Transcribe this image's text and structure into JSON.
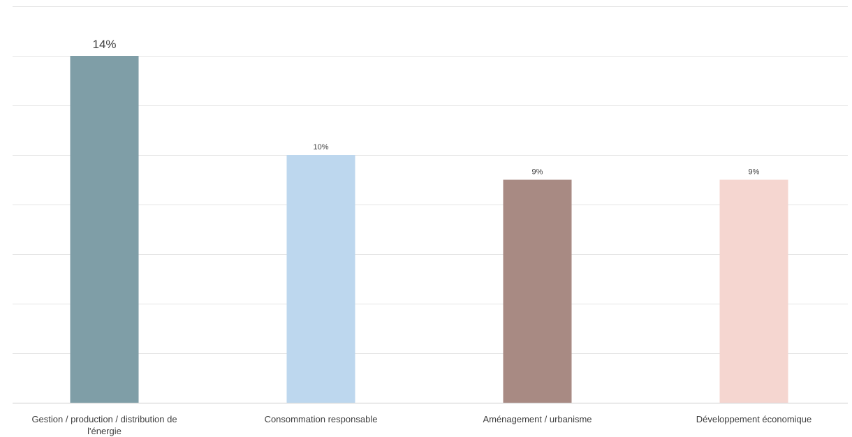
{
  "chart_data": {
    "type": "bar",
    "categories": [
      [
        "Gestion / production / distribution de",
        "l'énergie"
      ],
      [
        "Consommation responsable"
      ],
      [
        "Aménagement / urbanisme"
      ],
      [
        "Développement économique"
      ]
    ],
    "values": [
      14,
      10,
      9,
      9
    ],
    "data_labels": [
      "14%",
      "10%",
      "9%",
      "9%"
    ],
    "colors": [
      "#7f9ea7",
      "#bdd7ee",
      "#a88a83",
      "#f5d6d0"
    ],
    "ylim": [
      0,
      16
    ],
    "y_gridline_step": 2,
    "grid": true,
    "legend": "none",
    "title": "",
    "xlabel": "",
    "ylabel": ""
  }
}
